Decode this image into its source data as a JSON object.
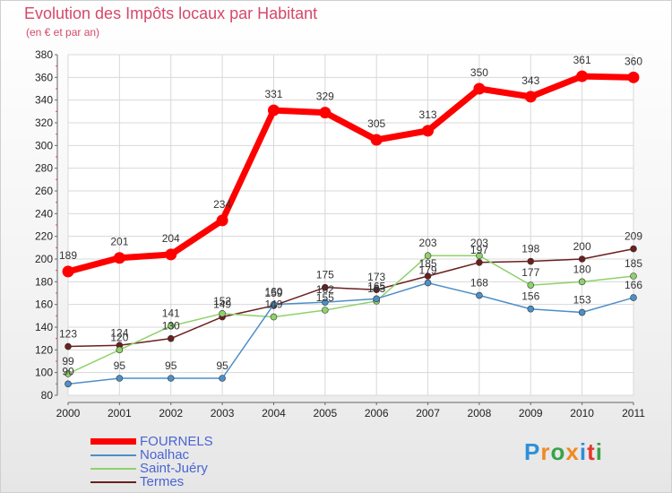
{
  "title": "Evolution des Impôts locaux par Habitant",
  "subtitle": "(en € et par an)",
  "logo": {
    "text": "Proxiti",
    "letters": [
      "P",
      "r",
      "o",
      "x",
      "i",
      "t",
      "i"
    ],
    "letter_colors": [
      "#2e8fd8",
      "#f08a24",
      "#3aa24a",
      "#f08a24",
      "#2e8fd8",
      "#e23a2a",
      "#3aa24a"
    ]
  },
  "chart_data": {
    "type": "line",
    "title": "Evolution des Impôts locaux par Habitant",
    "subtitle": "(en € et par an)",
    "xlabel": "",
    "ylabel": "",
    "ylim": [
      80,
      380
    ],
    "y_ticks": [
      80,
      100,
      120,
      140,
      160,
      180,
      200,
      220,
      240,
      260,
      280,
      300,
      320,
      340,
      360,
      380
    ],
    "x": [
      "2000",
      "2001",
      "2002",
      "2003",
      "2004",
      "2005",
      "2006",
      "2007",
      "2008",
      "2009",
      "2010",
      "2011"
    ],
    "grid": true,
    "legend_position": "bottom-left",
    "series": [
      {
        "name": "FOURNELS",
        "color": "#ff0000",
        "values": [
          189,
          201,
          204,
          234,
          331,
          329,
          305,
          313,
          350,
          343,
          361,
          360
        ],
        "labels": [
          "189",
          "201",
          "204",
          "234",
          "331",
          "329",
          "305",
          "313",
          "350",
          "343",
          "361",
          "360"
        ]
      },
      {
        "name": "Noalhac",
        "color": "#4d8fc8",
        "values": [
          90,
          95,
          95,
          95,
          160,
          162,
          165,
          179,
          168,
          156,
          153,
          166
        ],
        "labels": [
          "90",
          "95",
          "95",
          "95",
          "160",
          "162",
          "165",
          "179",
          "168",
          "156",
          "153",
          "166"
        ]
      },
      {
        "name": "Saint-Juéry",
        "color": "#8fd16a",
        "values": [
          99,
          120,
          141,
          152,
          149,
          155,
          163,
          203,
          203,
          177,
          180,
          185
        ],
        "labels": [
          "99",
          "120",
          "141",
          "152",
          "149",
          "155",
          "163",
          "203",
          "203",
          "177",
          "180",
          "185"
        ]
      },
      {
        "name": "Termes",
        "color": "#6b1f1f",
        "values": [
          123,
          124,
          130,
          149,
          159,
          175,
          173,
          185,
          197,
          198,
          200,
          209
        ],
        "labels": [
          "123",
          "124",
          "130",
          "149",
          "159",
          "175",
          "173",
          "185",
          "197",
          "198",
          "200",
          "209"
        ]
      }
    ]
  }
}
